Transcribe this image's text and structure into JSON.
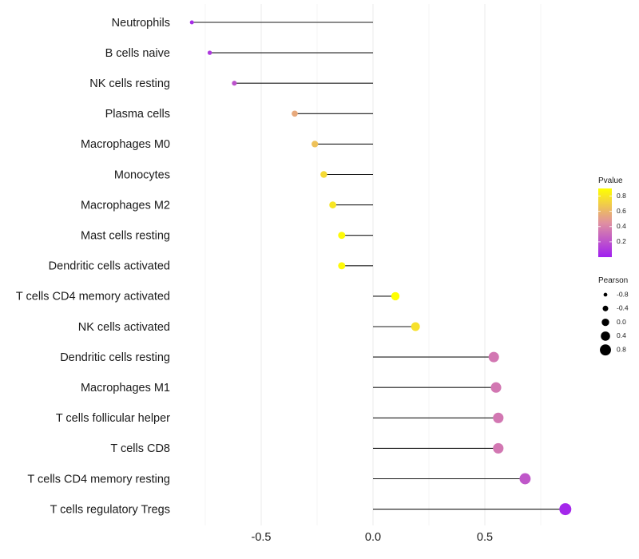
{
  "chart_data": {
    "type": "scatter",
    "subtype": "lollipop",
    "title": "",
    "xlabel": "",
    "ylabel": "",
    "xlim": [
      -0.88,
      0.93
    ],
    "x_ticks": [
      -0.5,
      0.0,
      0.5
    ],
    "x_tick_labels": [
      "-0.5",
      "0.0",
      "0.5"
    ],
    "grid": true,
    "categories": [
      "Neutrophils",
      "B cells naive",
      "NK cells resting",
      "Plasma cells",
      "Macrophages M0",
      "Monocytes",
      "Macrophages M2",
      "Mast cells resting",
      "Dendritic cells activated",
      "T cells CD4 memory activated",
      "NK cells activated",
      "Dendritic cells resting",
      "Macrophages M1",
      "T cells follicular helper",
      "T cells CD8",
      "T cells CD4 memory resting",
      "T cells regulatory  Tregs"
    ],
    "values": [
      -0.81,
      -0.73,
      -0.62,
      -0.35,
      -0.26,
      -0.22,
      -0.18,
      -0.14,
      -0.14,
      0.1,
      0.19,
      0.54,
      0.55,
      0.56,
      0.56,
      0.68,
      0.86
    ],
    "pvalues": [
      0.05,
      0.1,
      0.2,
      0.55,
      0.65,
      0.75,
      0.8,
      0.88,
      0.88,
      0.9,
      0.78,
      0.35,
      0.35,
      0.35,
      0.35,
      0.22,
      0.03
    ],
    "legends": {
      "color": {
        "title": "Pvalue",
        "ticks": [
          0.2,
          0.4,
          0.6,
          0.8
        ],
        "tick_labels": [
          "0.2",
          "0.4",
          "0.6",
          "0.8"
        ],
        "range": [
          0.0,
          0.9
        ],
        "low_color": "#A020F0",
        "mid_color": "#E090A0",
        "high_color": "#FFFF00",
        "placement": "right"
      },
      "size": {
        "title": "Pearson",
        "values": [
          -0.8,
          -0.4,
          0.0,
          0.4,
          0.8
        ],
        "labels": [
          "-0.8",
          "-0.4",
          "0.0",
          "0.4",
          "0.8"
        ],
        "placement": "right"
      }
    }
  }
}
